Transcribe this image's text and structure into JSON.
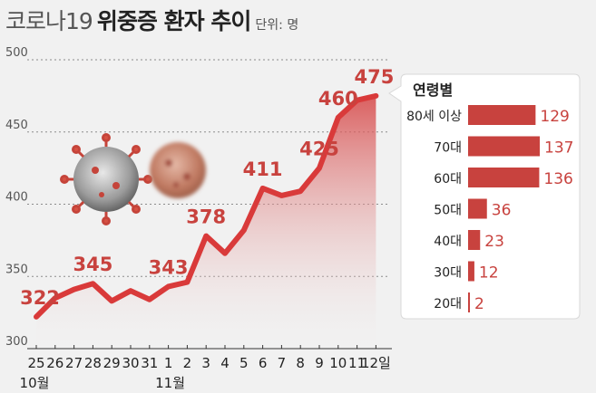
{
  "title": {
    "prefix": "코로나19",
    "main": "위중증 환자 추이",
    "unit": "단위: 명"
  },
  "chart_data": [
    {
      "type": "line",
      "ylim": [
        300,
        500
      ],
      "yticks": [
        "300",
        "350",
        "400",
        "450",
        "500"
      ],
      "x": [
        "25",
        "26",
        "27",
        "28",
        "29",
        "30",
        "31",
        "1",
        "2",
        "3",
        "4",
        "5",
        "6",
        "7",
        "8",
        "9",
        "10",
        "11",
        "12일"
      ],
      "values": [
        322,
        335,
        341,
        345,
        333,
        340,
        334,
        343,
        346,
        378,
        366,
        382,
        411,
        406,
        409,
        425,
        460,
        472,
        475
      ],
      "labeled_points": [
        {
          "x": "25",
          "label": "322"
        },
        {
          "x": "28",
          "label": "345"
        },
        {
          "x": "1",
          "label": "343"
        },
        {
          "x": "3",
          "label": "378"
        },
        {
          "x": "6",
          "label": "411"
        },
        {
          "x": "9",
          "label": "425"
        },
        {
          "x": "10",
          "label": "460"
        },
        {
          "x": "12일",
          "label": "475"
        }
      ],
      "month_labels": [
        {
          "x": "25",
          "label": "10월"
        },
        {
          "x": "1",
          "label": "11월"
        }
      ],
      "line_color": "#d93a3a",
      "grid": true
    },
    {
      "type": "bar",
      "title": "연령별",
      "categories": [
        "80세 이상",
        "70대",
        "60대",
        "50대",
        "40대",
        "30대",
        "20대"
      ],
      "values": [
        129,
        137,
        136,
        36,
        23,
        12,
        2
      ],
      "bar_color": "#c8423e"
    }
  ]
}
